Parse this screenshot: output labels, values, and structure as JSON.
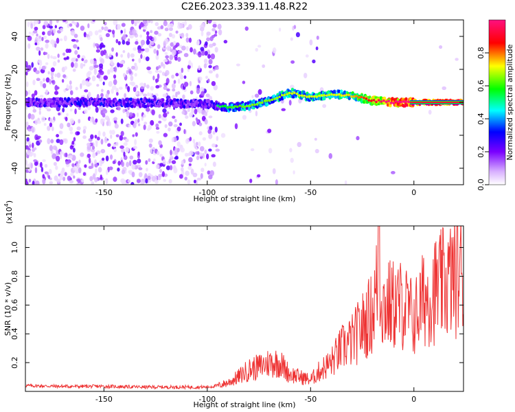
{
  "title": "C2E6.2023.339.11.48.R22",
  "chart_data": [
    {
      "type": "heatmap",
      "xlabel": "Height of straight line (km)",
      "ylabel": "Frequency (Hz)",
      "xlim": [
        -188,
        24
      ],
      "ylim": [
        -50,
        50
      ],
      "xticks": [
        -150,
        -100,
        -50,
        0
      ],
      "yticks": [
        -40,
        -20,
        0,
        20,
        40
      ],
      "colorbar": {
        "label": "Normalized spectral amplitude",
        "range": [
          0.0,
          1.0
        ],
        "ticks": [
          "0.0",
          "0.2",
          "0.4",
          "0.6",
          "0.8"
        ],
        "colormap": "rainbow (white to violet to blue to cyan to green to yellow to red to magenta)"
      },
      "description_points": [
        {
          "x": -180,
          "y": 0,
          "z": 0.3
        },
        {
          "x": -150,
          "y": 0,
          "z": 0.35
        },
        {
          "x": -100,
          "y": -1,
          "z": 0.3
        },
        {
          "x": -90,
          "y": -3,
          "z": 0.45
        },
        {
          "x": -80,
          "y": -2,
          "z": 0.5
        },
        {
          "x": -70,
          "y": 1,
          "z": 0.5
        },
        {
          "x": -60,
          "y": 6,
          "z": 0.55
        },
        {
          "x": -50,
          "y": 3,
          "z": 0.55
        },
        {
          "x": -40,
          "y": 5,
          "z": 0.55
        },
        {
          "x": -30,
          "y": 4,
          "z": 0.6
        },
        {
          "x": -20,
          "y": 1,
          "z": 0.75
        },
        {
          "x": -10,
          "y": 0,
          "z": 0.9
        },
        {
          "x": 0,
          "y": 0,
          "z": 0.95
        },
        {
          "x": 20,
          "y": 0,
          "z": 0.98
        }
      ]
    },
    {
      "type": "line",
      "xlabel": "Height of straight line (km)",
      "ylabel": "SNR (10 * v/v)",
      "y_multiplier": "(x10",
      "y_multiplier_exp": "4",
      "y_multiplier_close": ")",
      "xlim": [
        -188,
        24
      ],
      "ylim": [
        0,
        1.15
      ],
      "xticks": [
        -150,
        -100,
        -50,
        0
      ],
      "yticks": [
        0.2,
        0.4,
        0.6,
        0.8,
        1.0
      ],
      "color": "#ee3333",
      "x": [
        -188,
        -170,
        -150,
        -130,
        -110,
        -100,
        -95,
        -90,
        -85,
        -80,
        -75,
        -70,
        -65,
        -60,
        -55,
        -50,
        -45,
        -40,
        -35,
        -30,
        -25,
        -20,
        -17,
        -15,
        -10,
        -5,
        0,
        5,
        10,
        15,
        20,
        24
      ],
      "y": [
        0.04,
        0.035,
        0.035,
        0.03,
        0.03,
        0.03,
        0.04,
        0.06,
        0.1,
        0.15,
        0.17,
        0.2,
        0.2,
        0.12,
        0.1,
        0.08,
        0.15,
        0.2,
        0.3,
        0.35,
        0.45,
        0.55,
        0.8,
        0.6,
        0.6,
        0.6,
        0.5,
        0.65,
        0.7,
        0.75,
        0.8,
        0.85
      ]
    }
  ]
}
